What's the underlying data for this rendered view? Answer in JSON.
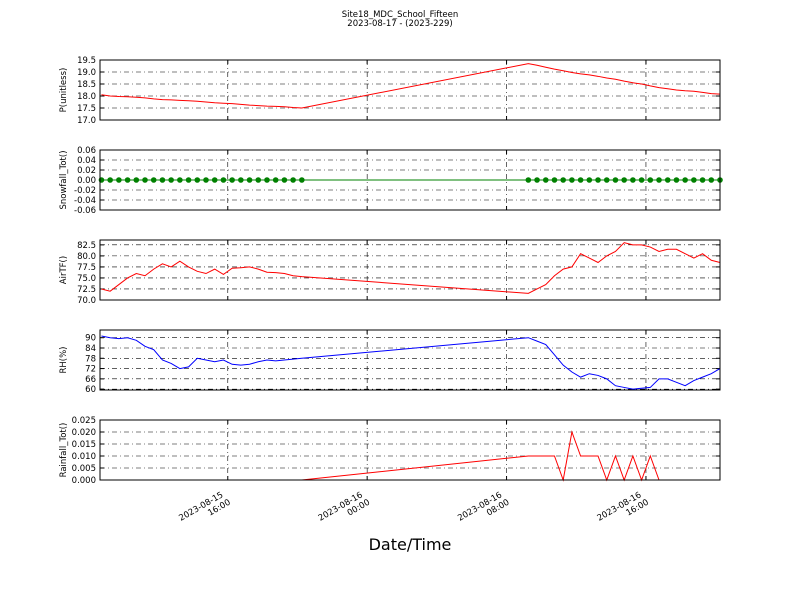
{
  "chart_data": {
    "type": "line",
    "title": "Site18_MDC_School_Fifteen",
    "subtitle": "2023-08-17 - (2023-229)",
    "xlabel": "Date/Time",
    "grid": true,
    "x": [
      "2023-08-15 08:45",
      "2023-08-15 09:15",
      "2023-08-15 09:45",
      "2023-08-15 10:15",
      "2023-08-15 10:45",
      "2023-08-15 11:15",
      "2023-08-15 11:45",
      "2023-08-15 12:15",
      "2023-08-15 12:45",
      "2023-08-15 13:15",
      "2023-08-15 13:45",
      "2023-08-15 14:15",
      "2023-08-15 14:45",
      "2023-08-15 15:15",
      "2023-08-15 15:45",
      "2023-08-15 16:15",
      "2023-08-15 16:45",
      "2023-08-15 17:15",
      "2023-08-15 17:45",
      "2023-08-15 18:15",
      "2023-08-15 18:45",
      "2023-08-15 19:15",
      "2023-08-15 19:45",
      "2023-08-15 20:15",
      "2023-08-16 09:15",
      "2023-08-16 09:45",
      "2023-08-16 10:15",
      "2023-08-16 10:45",
      "2023-08-16 11:15",
      "2023-08-16 11:45",
      "2023-08-16 12:15",
      "2023-08-16 12:45",
      "2023-08-16 13:15",
      "2023-08-16 13:45",
      "2023-08-16 14:15",
      "2023-08-16 14:45",
      "2023-08-16 15:15",
      "2023-08-16 15:45",
      "2023-08-16 16:15",
      "2023-08-16 16:45",
      "2023-08-16 17:15",
      "2023-08-16 17:45",
      "2023-08-16 18:15",
      "2023-08-16 18:45",
      "2023-08-16 19:15",
      "2023-08-16 19:45",
      "2023-08-16 20:15"
    ],
    "xlim": [
      "2023-08-15 08:40",
      "2023-08-16 20:15"
    ],
    "xticks": [
      "2023-08-15 16:00",
      "2023-08-16 00:00",
      "2023-08-16 08:00",
      "2023-08-16 16:00"
    ],
    "panels": [
      {
        "ylabel": "P(unitless)",
        "ylim": [
          17,
          19.5
        ],
        "yticks": [
          {
            "value": 17,
            "label": "17.0"
          },
          17.5,
          {
            "value": 18,
            "label": "18.0"
          },
          18.5,
          {
            "value": 19,
            "label": "19.0"
          },
          19.5
        ],
        "series": [
          {
            "color": "#ff0000",
            "values": [
              18.05,
              18.0,
              17.98,
              17.97,
              17.95,
              17.92,
              17.88,
              17.85,
              17.84,
              17.82,
              17.8,
              17.78,
              17.75,
              17.72,
              17.7,
              17.68,
              17.65,
              17.62,
              17.6,
              17.58,
              17.57,
              17.55,
              17.52,
              17.5,
              19.35,
              19.28,
              19.2,
              19.12,
              19.05,
              18.98,
              18.92,
              18.88,
              18.82,
              18.75,
              18.7,
              18.62,
              18.55,
              18.5,
              18.42,
              18.35,
              18.3,
              18.25,
              18.22,
              18.2,
              18.15,
              18.1,
              18.08
            ]
          }
        ]
      },
      {
        "ylabel": "Snowfall_Tot()",
        "ylim": [
          -0.06,
          0.06
        ],
        "yticks": [
          -0.06,
          -0.04,
          -0.02,
          {
            "value": 0,
            "label": "0.00"
          },
          0.02,
          0.04,
          0.06
        ],
        "series": [
          {
            "color": "#008000",
            "marker": "o",
            "values": [
              0,
              0,
              0,
              0,
              0,
              0,
              0,
              0,
              0,
              0,
              0,
              0,
              0,
              0,
              0,
              0,
              0,
              0,
              0,
              0,
              0,
              0,
              0,
              0,
              0,
              0,
              0,
              0,
              0,
              0,
              0,
              0,
              0,
              0,
              0,
              0,
              0,
              0,
              0,
              0,
              0,
              0,
              0,
              0,
              0,
              0,
              0
            ]
          }
        ]
      },
      {
        "ylabel": "AirTF()",
        "ylim": [
          70,
          83.6
        ],
        "yticks": [
          {
            "value": 70,
            "label": "70.0"
          },
          72.5,
          {
            "value": 75,
            "label": "75.0"
          },
          77.5,
          {
            "value": 80,
            "label": "80.0"
          },
          82.5
        ],
        "series": [
          {
            "color": "#ff0000",
            "values": [
              72.5,
              72,
              73.5,
              75,
              76,
              75.5,
              77,
              78.2,
              77.5,
              78.8,
              77.5,
              76.5,
              76,
              77,
              75.8,
              77.2,
              77.3,
              77.5,
              77,
              76.3,
              76.2,
              76,
              75.5,
              75.3,
              71.5,
              72.5,
              73.5,
              75.5,
              77,
              77.5,
              80.5,
              79.5,
              78.5,
              80,
              81,
              83,
              82.5,
              82.5,
              82,
              81,
              81.5,
              81.5,
              80.5,
              79.5,
              80.5,
              79,
              78.5
            ]
          }
        ]
      },
      {
        "ylabel": "RH(%)",
        "ylim": [
          59.5,
          94.5
        ],
        "yticks": [
          60,
          66,
          72,
          78,
          84,
          90
        ],
        "series": [
          {
            "color": "#0000ff",
            "values": [
              91,
              90,
              89.5,
              90,
              88.5,
              85,
              83,
              77,
              75,
              72,
              73,
              78,
              77,
              76,
              77,
              74.5,
              74,
              74.5,
              76,
              77,
              76.5,
              77,
              77.5,
              78,
              90,
              88,
              86,
              80,
              74,
              70,
              67,
              69,
              68,
              66,
              62,
              61,
              60,
              60.5,
              61,
              66,
              66,
              64,
              62,
              65,
              67,
              69,
              72
            ]
          }
        ]
      },
      {
        "ylabel": "Rainfall_Tot()",
        "ylim": [
          0,
          0.025
        ],
        "yticks": [
          {
            "value": 0,
            "label": "0.000"
          },
          0.005,
          {
            "value": 0.01,
            "label": "0.010"
          },
          0.015,
          {
            "value": 0.02,
            "label": "0.020"
          },
          0.025
        ],
        "series": [
          {
            "color": "#ff0000",
            "values": [
              0,
              0,
              0,
              0,
              0,
              0,
              0,
              0,
              0,
              0,
              0,
              0,
              0,
              0,
              0,
              0,
              0,
              0,
              0,
              0,
              0,
              0,
              0,
              0,
              0.01,
              0.01,
              0.01,
              0.01,
              0,
              0.02,
              0.01,
              0.01,
              0.01,
              0,
              0.01,
              0,
              0.01,
              0,
              0.01,
              0,
              0,
              0,
              0,
              0,
              0,
              0,
              0
            ]
          }
        ]
      }
    ]
  }
}
